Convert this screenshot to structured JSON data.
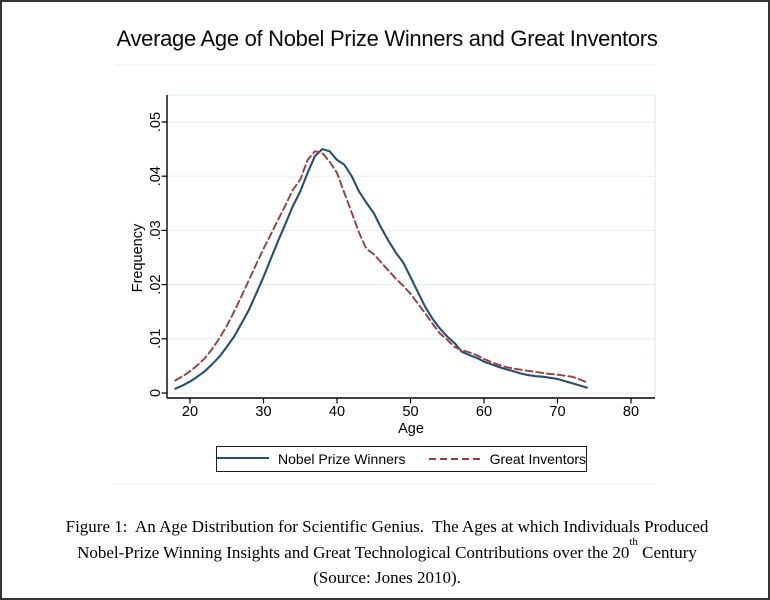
{
  "page_title": "Average Age of Nobel Prize Winners and Great Inventors",
  "chart_data": {
    "type": "line",
    "title": "Average Age of Nobel Prize Winners and Great Inventors",
    "xlabel": "Age",
    "ylabel": "Frequency",
    "xlim": [
      17,
      83
    ],
    "ylim": [
      0,
      0.055
    ],
    "grid": "horizontal",
    "legend_position": "bottom-center",
    "x_ticks": [
      20,
      30,
      40,
      50,
      60,
      70,
      80
    ],
    "y_tick_values": [
      0,
      0.01,
      0.02,
      0.03,
      0.04,
      0.05
    ],
    "y_tick_labels": [
      "0",
      ".01",
      ".02",
      ".03",
      ".04",
      ".05"
    ],
    "x": [
      18,
      19,
      20,
      21,
      22,
      23,
      24,
      25,
      26,
      27,
      28,
      29,
      30,
      31,
      32,
      33,
      34,
      35,
      36,
      37,
      38,
      39,
      40,
      41,
      42,
      43,
      44,
      45,
      46,
      47,
      48,
      49,
      50,
      51,
      52,
      53,
      54,
      55,
      56,
      57,
      58,
      59,
      60,
      61,
      62,
      63,
      64,
      65,
      66,
      67,
      68,
      69,
      70,
      71,
      72,
      73,
      74
    ],
    "series": [
      {
        "name": "Nobel Prize Winners",
        "color": "#215078",
        "style": "solid",
        "values": [
          0.0008,
          0.0014,
          0.0021,
          0.003,
          0.004,
          0.0053,
          0.0067,
          0.0085,
          0.0104,
          0.0128,
          0.0153,
          0.0183,
          0.0214,
          0.0248,
          0.0281,
          0.0313,
          0.0345,
          0.0372,
          0.0406,
          0.0437,
          0.045,
          0.0446,
          0.043,
          0.0421,
          0.04,
          0.0372,
          0.0351,
          0.0332,
          0.0305,
          0.0281,
          0.0259,
          0.0241,
          0.0214,
          0.0186,
          0.0159,
          0.0137,
          0.0119,
          0.0104,
          0.0092,
          0.0076,
          0.007,
          0.0065,
          0.0058,
          0.0053,
          0.0048,
          0.0044,
          0.004,
          0.0036,
          0.0033,
          0.0031,
          0.003,
          0.0028,
          0.0026,
          0.0022,
          0.0018,
          0.0014,
          0.001
        ]
      },
      {
        "name": "Great Inventors",
        "color": "#9d3c3e",
        "style": "dashed",
        "values": [
          0.0023,
          0.0031,
          0.004,
          0.0051,
          0.0064,
          0.0081,
          0.0101,
          0.0124,
          0.015,
          0.0178,
          0.0208,
          0.0237,
          0.0266,
          0.0293,
          0.032,
          0.0347,
          0.0375,
          0.0394,
          0.043,
          0.0446,
          0.0443,
          0.0427,
          0.0406,
          0.0369,
          0.0333,
          0.0296,
          0.0266,
          0.0256,
          0.0241,
          0.0226,
          0.0211,
          0.0198,
          0.0183,
          0.0165,
          0.0147,
          0.0128,
          0.011,
          0.0098,
          0.0085,
          0.0079,
          0.0075,
          0.007,
          0.0063,
          0.0057,
          0.0052,
          0.0048,
          0.0045,
          0.0043,
          0.0041,
          0.0039,
          0.0037,
          0.0035,
          0.0034,
          0.0032,
          0.003,
          0.0025,
          0.002
        ]
      }
    ]
  },
  "caption": {
    "line1": "Figure 1:  An Age Distribution for Scientific Genius.  The Ages at which Individuals Produced",
    "line2_pre": "Nobel-Prize Winning Insights and Great Technological Contributions over the 20",
    "line2_sup": "th",
    "line2_post": " Century",
    "line3": "(Source: Jones 2010)."
  },
  "colors": {
    "nobel_line": "#215078",
    "inventors_line": "#9d3c3e",
    "gridline": "#e5eef0",
    "plot_border": "#dde8ea",
    "axis": "#000000"
  }
}
